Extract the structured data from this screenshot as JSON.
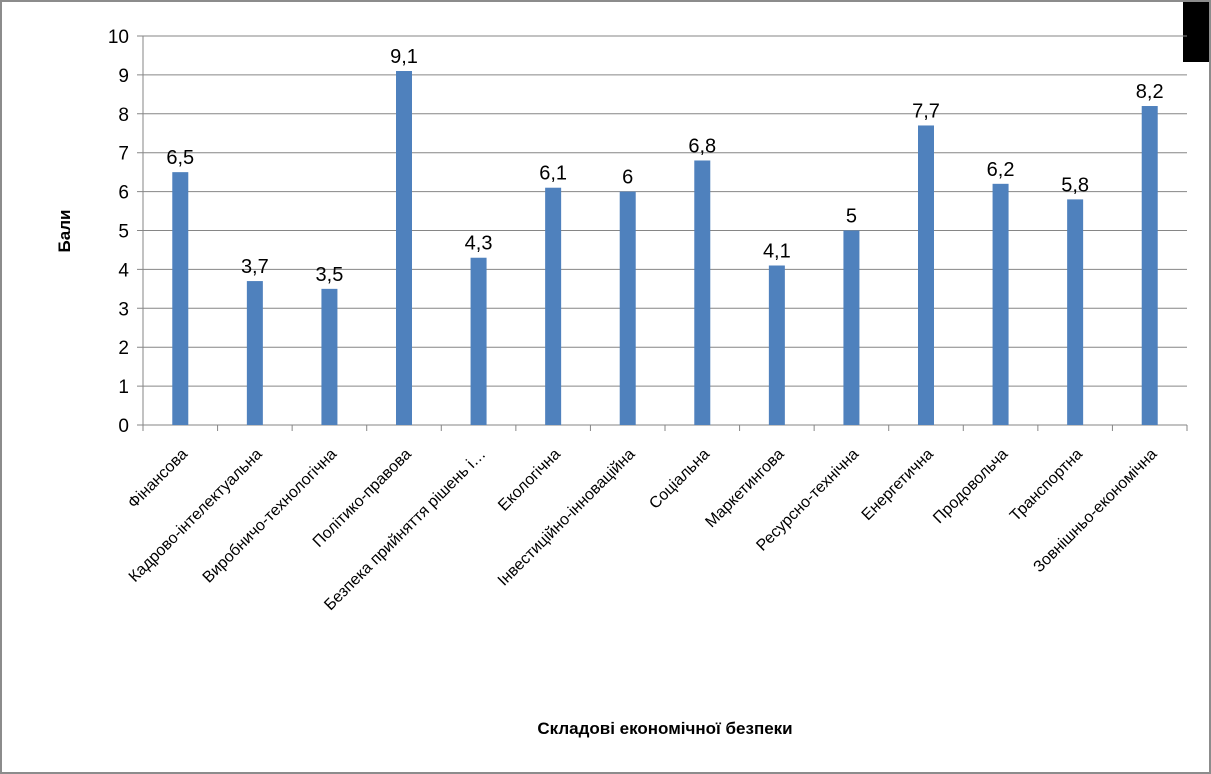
{
  "chart_data": {
    "type": "bar",
    "title": "",
    "xlabel": "Складові економічної безпеки",
    "ylabel": "Бали",
    "ylim": [
      0,
      10
    ],
    "yticks": [
      "0",
      "1",
      "2",
      "3",
      "4",
      "5",
      "6",
      "7",
      "8",
      "9",
      "10"
    ],
    "grid": true,
    "legend": "none",
    "bar_color": "#4f81bd",
    "categories": [
      "Фінансова",
      "Кадрово-інтелектуальна",
      "Виробничо-технологічна",
      "Політико-правова",
      "Безпека прийняття рішень і…",
      "Екологічна",
      "Інвестиційно-інноваційна",
      "Соціальна",
      "Маркетингова",
      "Ресурсно-технічна",
      "Енергетична",
      "Продовольча",
      "Транспортна",
      "Зовнішньо-економічна"
    ],
    "values": [
      6.5,
      3.7,
      3.5,
      9.1,
      4.3,
      6.1,
      6,
      6.8,
      4.1,
      5,
      7.7,
      6.2,
      5.8,
      8.2
    ],
    "value_labels": [
      "6,5",
      "3,7",
      "3,5",
      "9,1",
      "4,3",
      "6,1",
      "6",
      "6,8",
      "4,1",
      "5",
      "7,7",
      "6,2",
      "5,8",
      "8,2"
    ]
  }
}
